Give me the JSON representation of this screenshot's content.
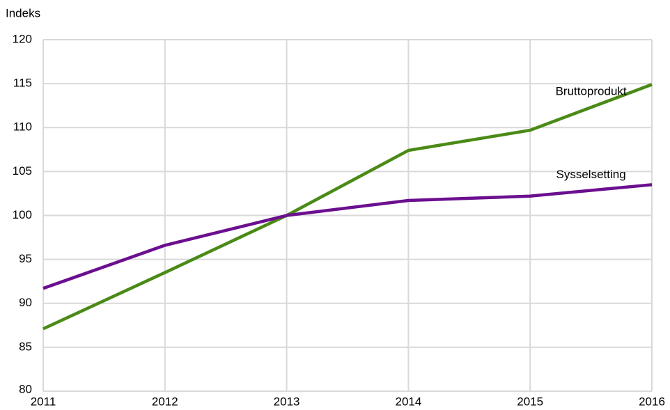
{
  "chart_data": {
    "type": "line",
    "y_label": "Indeks",
    "x": [
      2011,
      2012,
      2013,
      2014,
      2015,
      2016
    ],
    "xlim": [
      2011,
      2016
    ],
    "xticks": [
      2011,
      2012,
      2013,
      2014,
      2015,
      2016
    ],
    "ylim": [
      80,
      120
    ],
    "yticks": [
      80,
      85,
      90,
      95,
      100,
      105,
      110,
      115,
      120
    ],
    "grid": true,
    "series": [
      {
        "name": "Bruttoprodukt",
        "color": "#4a8a16",
        "values": [
          87.1,
          93.5,
          100,
          107.4,
          109.7,
          114.9
        ]
      },
      {
        "name": "Sysselsetting",
        "color": "#6b0f8f",
        "values": [
          91.7,
          96.6,
          100,
          101.7,
          102.2,
          103.5
        ]
      }
    ]
  }
}
